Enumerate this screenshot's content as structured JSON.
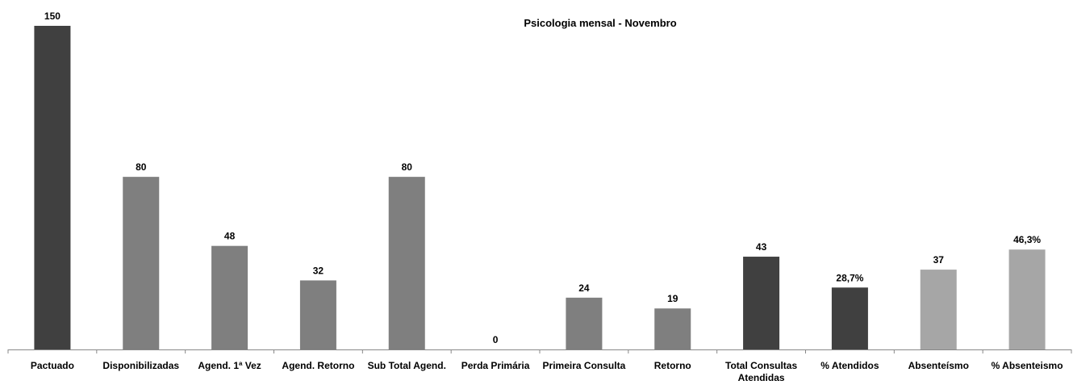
{
  "chart_data": {
    "type": "bar",
    "title": "Psicologia mensal  - Novembro",
    "categories": [
      "Pactuado",
      "Disponibilizadas",
      "Agend. 1ª Vez",
      "Agend. Retorno",
      "Sub Total Agend.",
      "Perda Primária",
      "Primeira Consulta",
      "Retorno",
      "Total Consultas Atendidas",
      "% Atendidos",
      "Absenteísmo",
      "% Absenteismo"
    ],
    "values": [
      150,
      80,
      48,
      32,
      80,
      0,
      24,
      19,
      43,
      28.7,
      37,
      46.3
    ],
    "value_labels": [
      "150",
      "80",
      "48",
      "32",
      "80",
      "0",
      "24",
      "19",
      "43",
      "28,7%",
      "37",
      "46,3%"
    ],
    "colors": [
      "#404040",
      "#7f7f7f",
      "#7f7f7f",
      "#7f7f7f",
      "#7f7f7f",
      "#7f7f7f",
      "#7f7f7f",
      "#7f7f7f",
      "#404040",
      "#404040",
      "#a6a6a6",
      "#a6a6a6"
    ]
  }
}
